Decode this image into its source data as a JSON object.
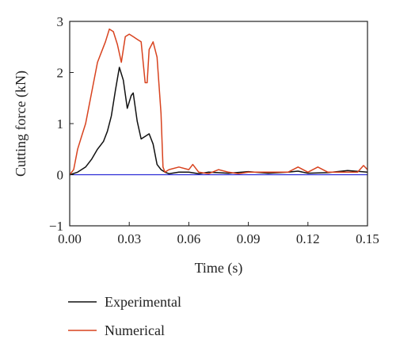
{
  "chart_data": {
    "type": "line",
    "title": "",
    "xlabel": "Time (s)",
    "ylabel": "Cutting force (kN)",
    "xlim": [
      0,
      0.15
    ],
    "ylim": [
      -1,
      3
    ],
    "xticks": [
      0.0,
      0.03,
      0.06,
      0.09,
      0.12,
      0.15
    ],
    "xtick_labels": [
      "0.00",
      "0.03",
      "0.06",
      "0.09",
      "0.12",
      "0.15"
    ],
    "yticks": [
      -1,
      0,
      1,
      2,
      3
    ],
    "ytick_labels": [
      "−1",
      "0",
      "1",
      "2",
      "3"
    ],
    "grid": false,
    "legend_position": "bottom",
    "zero_line_color": "#2b2bd6",
    "series": [
      {
        "name": "Experimental",
        "color": "#111111",
        "x": [
          0.0,
          0.004,
          0.008,
          0.011,
          0.014,
          0.017,
          0.019,
          0.021,
          0.023,
          0.025,
          0.027,
          0.029,
          0.031,
          0.032,
          0.034,
          0.036,
          0.038,
          0.04,
          0.042,
          0.044,
          0.046,
          0.048,
          0.05,
          0.055,
          0.06,
          0.065,
          0.07,
          0.08,
          0.09,
          0.1,
          0.11,
          0.115,
          0.12,
          0.13,
          0.14,
          0.15
        ],
        "y": [
          0.0,
          0.05,
          0.15,
          0.3,
          0.5,
          0.65,
          0.85,
          1.15,
          1.65,
          2.1,
          1.85,
          1.3,
          1.55,
          1.6,
          1.05,
          0.7,
          0.75,
          0.8,
          0.6,
          0.2,
          0.1,
          0.05,
          0.02,
          0.05,
          0.05,
          0.02,
          0.05,
          0.03,
          0.06,
          0.03,
          0.05,
          0.07,
          0.03,
          0.04,
          0.08,
          0.05
        ]
      },
      {
        "name": "Numerical",
        "color": "#d8431f",
        "x": [
          0.0,
          0.002,
          0.004,
          0.006,
          0.008,
          0.01,
          0.012,
          0.014,
          0.016,
          0.018,
          0.02,
          0.022,
          0.024,
          0.026,
          0.028,
          0.03,
          0.032,
          0.034,
          0.036,
          0.038,
          0.039,
          0.04,
          0.042,
          0.044,
          0.046,
          0.047,
          0.048,
          0.05,
          0.055,
          0.06,
          0.062,
          0.065,
          0.07,
          0.075,
          0.08,
          0.085,
          0.09,
          0.1,
          0.11,
          0.115,
          0.12,
          0.125,
          0.13,
          0.14,
          0.145,
          0.148,
          0.15
        ],
        "y": [
          0.0,
          0.1,
          0.5,
          0.75,
          1.0,
          1.4,
          1.8,
          2.2,
          2.4,
          2.6,
          2.85,
          2.8,
          2.55,
          2.2,
          2.7,
          2.75,
          2.7,
          2.65,
          2.6,
          1.8,
          1.8,
          2.45,
          2.6,
          2.3,
          1.2,
          0.15,
          0.05,
          0.1,
          0.15,
          0.1,
          0.2,
          0.05,
          0.02,
          0.1,
          0.05,
          0.02,
          0.05,
          0.05,
          0.05,
          0.15,
          0.05,
          0.15,
          0.05,
          0.05,
          0.05,
          0.18,
          0.1
        ]
      }
    ]
  }
}
